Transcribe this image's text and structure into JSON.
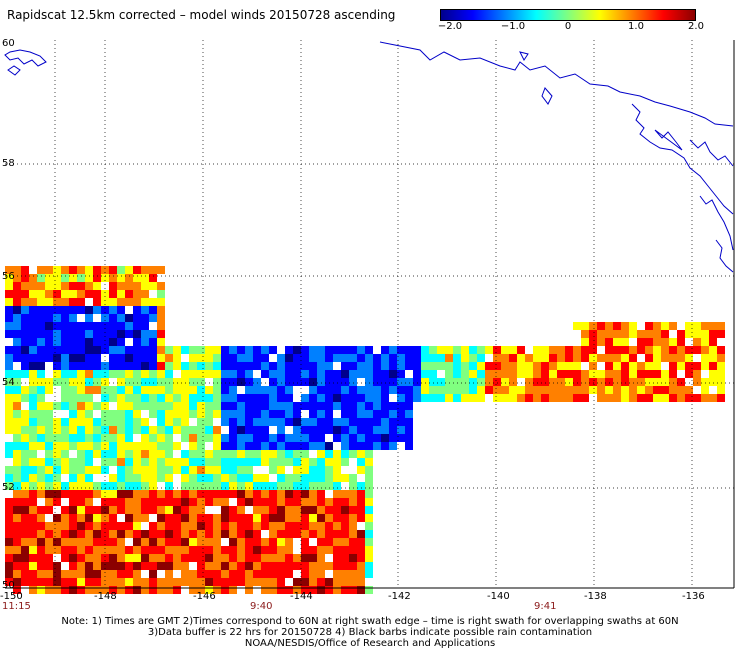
{
  "title": "Rapidscat 12.5km corrected – model winds 20150728 ascending",
  "colorbar": {
    "ticks": [
      "−2.0",
      "−1.0",
      "0",
      "1.0",
      "2.0"
    ],
    "colors": [
      "#00008b",
      "#0000ff",
      "#0080ff",
      "#00ffff",
      "#80ff80",
      "#ffff00",
      "#ff8000",
      "#ff0000",
      "#8b0000"
    ]
  },
  "axes": {
    "lat_labels": [
      "60",
      "58",
      "56",
      "54",
      "52",
      "50"
    ],
    "lon_labels": [
      "-150",
      "-148",
      "-146",
      "-144",
      "-142",
      "-140",
      "-138",
      "-136"
    ]
  },
  "times": [
    "11:15",
    "9:40",
    "9:41"
  ],
  "notes": [
    "Note: 1) Times are GMT 2)Times correspond to 60N at right swath edge – time is right swath for overlapping swaths at 60N",
    "3)Data buffer is 22 hrs for 20150728 4) Black barbs indicate possible rain contamination",
    "NOAA/NESDIS/Office of Research and Applications"
  ]
}
